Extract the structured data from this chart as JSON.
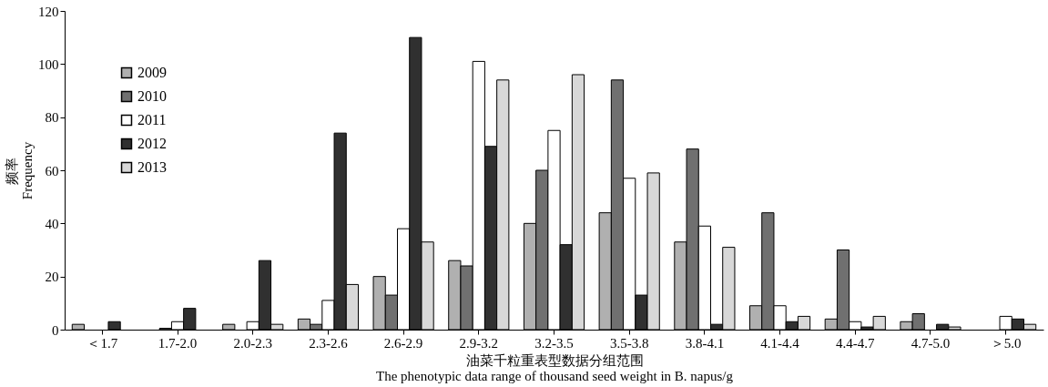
{
  "chart_data": {
    "type": "bar",
    "xlabel": "油菜千粒重表型数据分组范围\nThe phenotypic data range of thousand seed weight in B. napus/g",
    "ylabel": "频率\nFrequency",
    "categories": [
      "＜1.7",
      "1.7-2.0",
      "2.0-2.3",
      "2.3-2.6",
      "2.6-2.9",
      "2.9-3.2",
      "3.2-3.5",
      "3.5-3.8",
      "3.8-4.1",
      "4.1-4.4",
      "4.4-4.7",
      "4.7-5.0",
      "＞5.0"
    ],
    "series": [
      {
        "name": "2009",
        "color": "#b0b0b0",
        "values": [
          2,
          0,
          2,
          4,
          20,
          26,
          40,
          44,
          33,
          9,
          4,
          3,
          0
        ]
      },
      {
        "name": "2010",
        "color": "#707070",
        "values": [
          0,
          0.5,
          0,
          2,
          13,
          24,
          60,
          94,
          68,
          44,
          30,
          6,
          0
        ]
      },
      {
        "name": "2011",
        "color": "#ffffff",
        "values": [
          0,
          3,
          3,
          11,
          38,
          101,
          75,
          57,
          39,
          9,
          3,
          0,
          5
        ]
      },
      {
        "name": "2012",
        "color": "#303030",
        "values": [
          3,
          8,
          26,
          74,
          110,
          69,
          32,
          13,
          2,
          3,
          1,
          2,
          4
        ]
      },
      {
        "name": "2013",
        "color": "#d8d8d8",
        "values": [
          0,
          0,
          2,
          17,
          33,
          94,
          96,
          59,
          31,
          5,
          5,
          1,
          2
        ]
      }
    ],
    "ylim": [
      0,
      120
    ],
    "yticks": [
      0,
      20,
      40,
      60,
      80,
      100,
      120
    ],
    "grid": false,
    "legend": "top left"
  }
}
